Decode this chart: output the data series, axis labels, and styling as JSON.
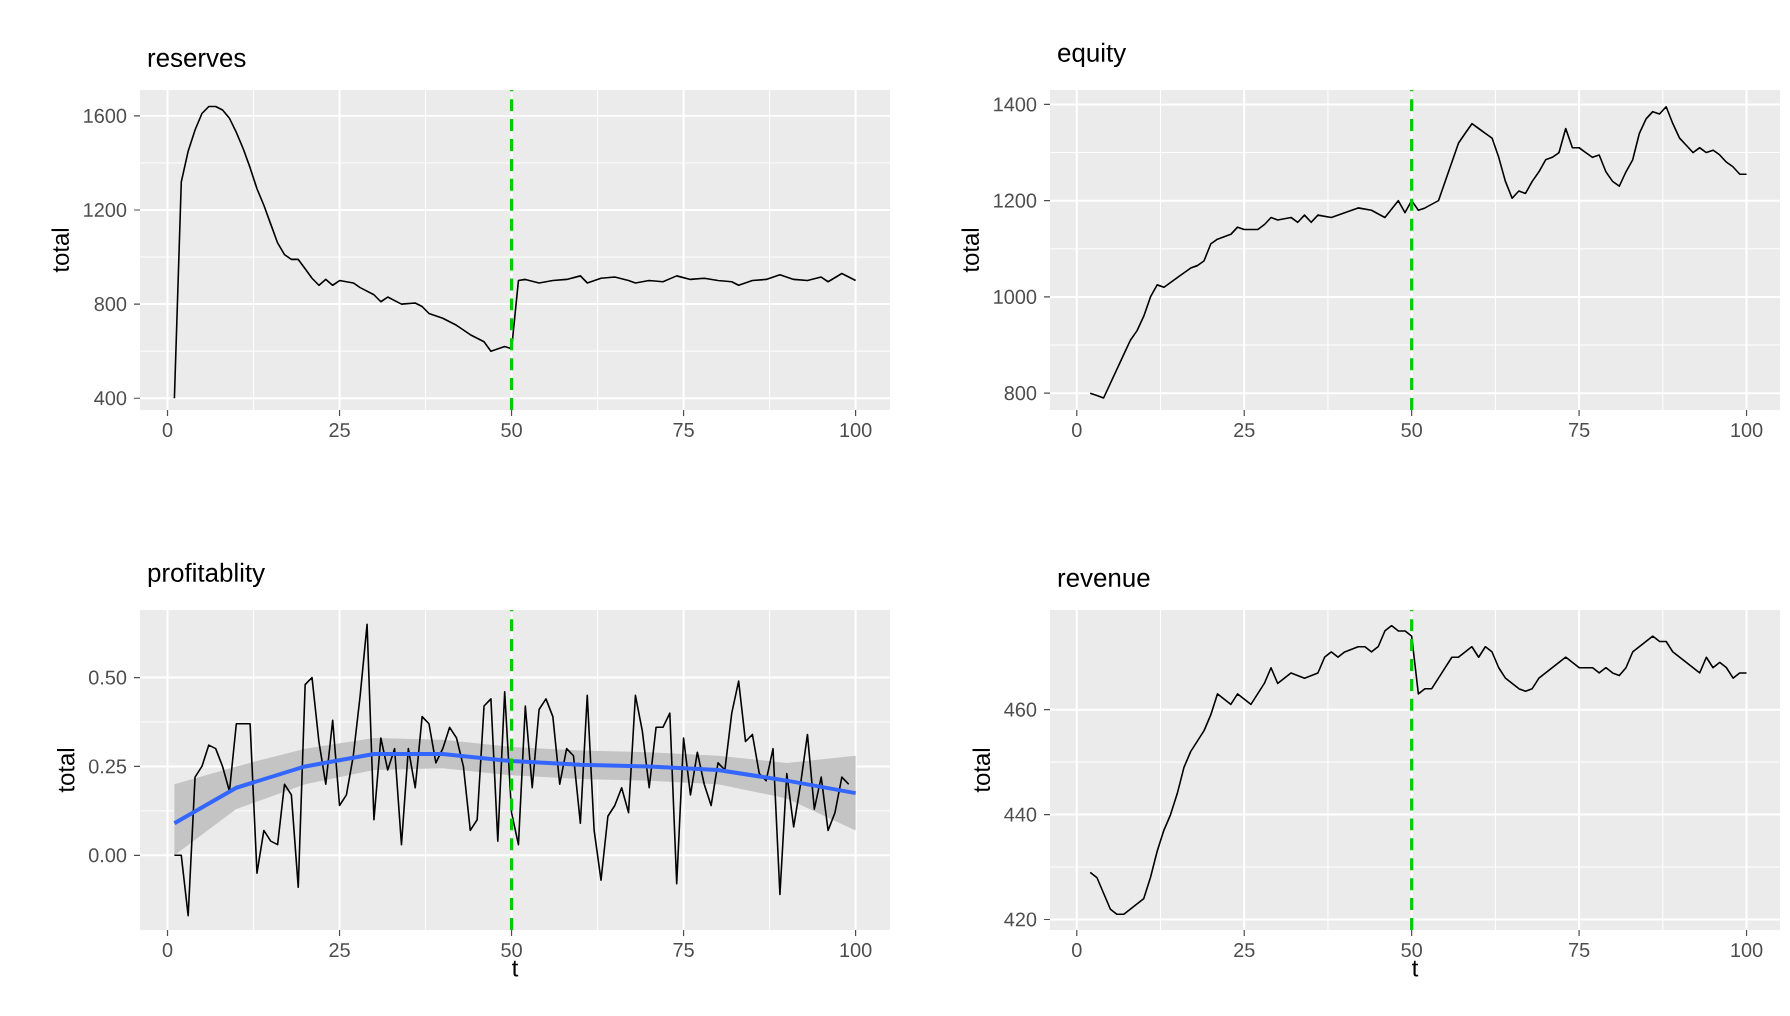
{
  "chart_data": [
    {
      "type": "line",
      "title": "reserves",
      "ylabel": "total",
      "xlim": [
        -4,
        105
      ],
      "ylim": [
        350,
        1710
      ],
      "xticks": [
        0,
        25,
        50,
        75,
        100
      ],
      "yticks": [
        400,
        800,
        1200,
        1600
      ],
      "grid": true,
      "ref_lines": [
        {
          "axis": "x",
          "value": 50,
          "color": "#00cc00",
          "line_style": "dashed"
        }
      ],
      "series": [
        {
          "color": "#000000",
          "x": [
            1,
            2,
            3,
            4,
            5,
            6,
            7,
            8,
            9,
            10,
            11,
            12,
            13,
            14,
            15,
            16,
            17,
            18,
            19,
            20,
            21,
            22,
            23,
            24,
            25,
            27,
            28,
            30,
            31,
            32,
            34,
            36,
            37,
            38,
            40,
            42,
            44,
            46,
            47,
            48,
            49,
            50,
            51,
            52,
            54,
            56,
            58,
            60,
            61,
            63,
            65,
            67,
            68,
            70,
            72,
            74,
            76,
            78,
            80,
            82,
            83,
            85,
            87,
            89,
            91,
            93,
            95,
            96,
            98,
            100
          ],
          "values": [
            400,
            1319,
            1450,
            1540,
            1610,
            1640,
            1640,
            1625,
            1590,
            1530,
            1460,
            1380,
            1290,
            1220,
            1140,
            1060,
            1010,
            990,
            990,
            950,
            910,
            880,
            905,
            880,
            900,
            890,
            870,
            840,
            810,
            830,
            800,
            805,
            790,
            760,
            740,
            710,
            670,
            640,
            600,
            610,
            620,
            610,
            900,
            905,
            890,
            900,
            905,
            920,
            890,
            910,
            915,
            900,
            890,
            900,
            895,
            920,
            905,
            910,
            900,
            895,
            880,
            900,
            905,
            925,
            905,
            900,
            915,
            895,
            930,
            900
          ]
        }
      ]
    },
    {
      "type": "line",
      "title": "equity",
      "ylabel": "total",
      "xlim": [
        -4,
        105
      ],
      "ylim": [
        765,
        1430
      ],
      "xticks": [
        0,
        25,
        50,
        75,
        100
      ],
      "yticks": [
        800,
        1000,
        1200,
        1400
      ],
      "grid": true,
      "ref_lines": [
        {
          "axis": "x",
          "value": 50,
          "color": "#00cc00",
          "line_style": "dashed"
        }
      ],
      "series": [
        {
          "color": "#000000",
          "x": [
            2,
            3,
            4,
            5,
            6,
            7,
            8,
            9,
            10,
            11,
            12,
            13,
            14,
            15,
            16,
            17,
            18,
            19,
            20,
            21,
            22,
            23,
            24,
            25,
            27,
            28,
            29,
            30,
            32,
            33,
            34,
            35,
            36,
            38,
            40,
            42,
            44,
            46,
            48,
            49,
            50,
            51,
            52,
            54,
            55,
            56,
            57,
            58,
            59,
            60,
            61,
            62,
            63,
            64,
            65,
            66,
            67,
            68,
            69,
            70,
            71,
            72,
            73,
            74,
            75,
            76,
            77,
            78,
            79,
            80,
            81,
            82,
            83,
            84,
            85,
            86,
            87,
            88,
            89,
            90,
            91,
            92,
            93,
            94,
            95,
            96,
            97,
            98,
            99,
            100
          ],
          "values": [
            800,
            795,
            790,
            820,
            850,
            880,
            910,
            930,
            960,
            1000,
            1025,
            1020,
            1030,
            1040,
            1050,
            1060,
            1065,
            1075,
            1110,
            1120,
            1125,
            1130,
            1145,
            1140,
            1140,
            1150,
            1165,
            1160,
            1165,
            1155,
            1170,
            1155,
            1170,
            1165,
            1175,
            1185,
            1180,
            1165,
            1200,
            1175,
            1200,
            1180,
            1185,
            1200,
            1240,
            1280,
            1320,
            1340,
            1360,
            1350,
            1340,
            1330,
            1290,
            1240,
            1205,
            1220,
            1215,
            1240,
            1260,
            1285,
            1290,
            1300,
            1350,
            1310,
            1310,
            1300,
            1290,
            1295,
            1260,
            1240,
            1230,
            1260,
            1285,
            1340,
            1370,
            1385,
            1380,
            1395,
            1360,
            1330,
            1315,
            1300,
            1310,
            1300,
            1305,
            1295,
            1280,
            1270,
            1255,
            1255
          ]
        }
      ]
    },
    {
      "type": "line",
      "title": "profitablity",
      "xlabel": "t",
      "ylabel": "total",
      "xlim": [
        -4,
        105
      ],
      "ylim": [
        -0.21,
        0.69
      ],
      "xticks": [
        0,
        25,
        50,
        75,
        100
      ],
      "yticks": [
        {
          "value": 0,
          "label": "0.00"
        },
        {
          "value": 0.25,
          "label": "0.25"
        },
        {
          "value": 0.5,
          "label": "0.50"
        }
      ],
      "grid": true,
      "ref_lines": [
        {
          "axis": "x",
          "value": 50,
          "color": "#00cc00",
          "line_style": "dashed"
        }
      ],
      "series": [
        {
          "color": "#000000",
          "x": [
            1,
            2,
            3,
            4,
            5,
            6,
            7,
            8,
            9,
            10,
            11,
            12,
            13,
            14,
            15,
            16,
            17,
            18,
            19,
            20,
            21,
            22,
            23,
            24,
            25,
            26,
            27,
            28,
            29,
            30,
            31,
            32,
            33,
            34,
            35,
            36,
            37,
            38,
            39,
            40,
            41,
            42,
            43,
            44,
            45,
            46,
            47,
            48,
            49,
            50,
            51,
            52,
            53,
            54,
            55,
            56,
            57,
            58,
            59,
            60,
            61,
            62,
            63,
            64,
            65,
            66,
            67,
            68,
            69,
            70,
            71,
            72,
            73,
            74,
            75,
            76,
            77,
            78,
            79,
            80,
            81,
            82,
            83,
            84,
            85,
            86,
            87,
            88,
            89,
            90,
            91,
            92,
            93,
            94,
            95,
            96,
            97,
            98,
            99
          ],
          "values": [
            0.0,
            0.0,
            -0.17,
            0.22,
            0.25,
            0.31,
            0.3,
            0.25,
            0.18,
            0.37,
            0.37,
            0.37,
            -0.05,
            0.07,
            0.04,
            0.03,
            0.2,
            0.17,
            -0.09,
            0.48,
            0.5,
            0.32,
            0.2,
            0.38,
            0.14,
            0.17,
            0.28,
            0.45,
            0.65,
            0.1,
            0.33,
            0.24,
            0.3,
            0.03,
            0.3,
            0.19,
            0.39,
            0.37,
            0.26,
            0.3,
            0.36,
            0.33,
            0.25,
            0.07,
            0.1,
            0.42,
            0.44,
            0.04,
            0.46,
            0.12,
            0.03,
            0.42,
            0.19,
            0.41,
            0.44,
            0.39,
            0.2,
            0.3,
            0.28,
            0.09,
            0.45,
            0.07,
            -0.07,
            0.11,
            0.14,
            0.19,
            0.12,
            0.45,
            0.35,
            0.19,
            0.36,
            0.36,
            0.4,
            -0.08,
            0.33,
            0.17,
            0.29,
            0.2,
            0.14,
            0.26,
            0.24,
            0.4,
            0.49,
            0.32,
            0.34,
            0.23,
            0.21,
            0.3,
            -0.11,
            0.23,
            0.08,
            0.2,
            0.34,
            0.13,
            0.22,
            0.07,
            0.12,
            0.22,
            0.2
          ]
        },
        {
          "color": "#3366ff",
          "x": [
            1,
            10,
            20,
            30,
            40,
            50,
            60,
            70,
            80,
            90,
            100
          ],
          "values": [
            0.09,
            0.19,
            0.25,
            0.285,
            0.285,
            0.265,
            0.255,
            0.25,
            0.24,
            0.21,
            0.175
          ],
          "lower": [
            0.0,
            0.13,
            0.2,
            0.24,
            0.245,
            0.225,
            0.215,
            0.21,
            0.2,
            0.16,
            0.07
          ],
          "upper": [
            0.2,
            0.25,
            0.3,
            0.33,
            0.325,
            0.305,
            0.295,
            0.29,
            0.28,
            0.26,
            0.28
          ]
        }
      ]
    },
    {
      "type": "line",
      "title": "revenue",
      "xlabel": "t",
      "ylabel": "total",
      "xlim": [
        -4,
        105
      ],
      "ylim": [
        418,
        479
      ],
      "xticks": [
        0,
        25,
        50,
        75,
        100
      ],
      "yticks": [
        420,
        440,
        460
      ],
      "grid": true,
      "ref_lines": [
        {
          "axis": "x",
          "value": 50,
          "color": "#00cc00",
          "line_style": "dashed"
        }
      ],
      "series": [
        {
          "color": "#000000",
          "x": [
            2,
            3,
            4,
            5,
            6,
            7,
            8,
            9,
            10,
            11,
            12,
            13,
            14,
            15,
            16,
            17,
            18,
            19,
            20,
            21,
            22,
            23,
            24,
            25,
            26,
            27,
            28,
            29,
            30,
            31,
            32,
            34,
            36,
            37,
            38,
            39,
            40,
            42,
            43,
            44,
            45,
            46,
            47,
            48,
            49,
            50,
            51,
            52,
            53,
            54,
            55,
            56,
            57,
            58,
            59,
            60,
            61,
            62,
            63,
            64,
            65,
            66,
            67,
            68,
            69,
            70,
            71,
            72,
            73,
            74,
            75,
            77,
            78,
            79,
            80,
            81,
            82,
            83,
            84,
            85,
            86,
            87,
            88,
            89,
            90,
            91,
            92,
            93,
            94,
            95,
            96,
            97,
            98,
            99,
            100
          ],
          "values": [
            429,
            428,
            425,
            422,
            421,
            421,
            422,
            423,
            424,
            428,
            433,
            437,
            440,
            444,
            449,
            452,
            454,
            456,
            459,
            463,
            462,
            461,
            463,
            462,
            461,
            463,
            465,
            468,
            465,
            466,
            467,
            466,
            467,
            470,
            471,
            470,
            471,
            472,
            472,
            471,
            472,
            475,
            476,
            475,
            475,
            474,
            463,
            464,
            464,
            466,
            468,
            470,
            470,
            471,
            472,
            470,
            472,
            471,
            468,
            466,
            465,
            464,
            463.5,
            464,
            466,
            467,
            468,
            469,
            470,
            469,
            468,
            468,
            467,
            468,
            467,
            466.5,
            468,
            471,
            472,
            473,
            474,
            473,
            473,
            471,
            470,
            469,
            468,
            467,
            470,
            468,
            469,
            468,
            466,
            467,
            467
          ]
        }
      ]
    }
  ]
}
